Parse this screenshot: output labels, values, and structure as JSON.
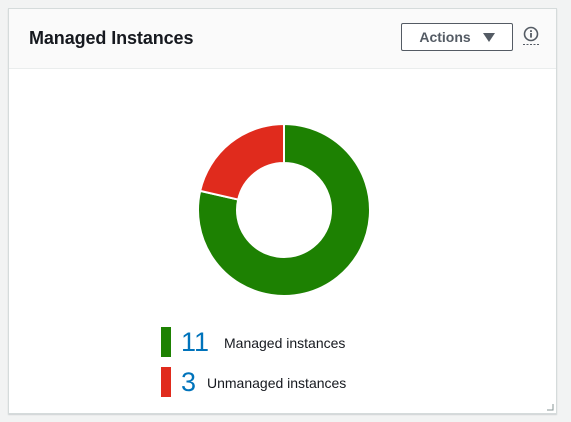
{
  "card": {
    "title": "Managed Instances",
    "actions_label": "Actions",
    "actions_caret_icon": "caret-down-icon",
    "info_icon": "info-icon"
  },
  "chart_data": {
    "type": "pie",
    "donut": true,
    "categories": [
      "Managed instances",
      "Unmanaged instances"
    ],
    "values": [
      11,
      3
    ],
    "colors": [
      "#1d8102",
      "#e02b1d"
    ]
  },
  "legend": [
    {
      "count": "11",
      "label": "Managed instances",
      "color": "#1d8102"
    },
    {
      "count": "3",
      "label": "Unmanaged instances",
      "color": "#e02b1d"
    }
  ],
  "colors": {
    "accent_link": "#0073bb",
    "managed": "#1d8102",
    "unmanaged": "#e02b1d"
  }
}
